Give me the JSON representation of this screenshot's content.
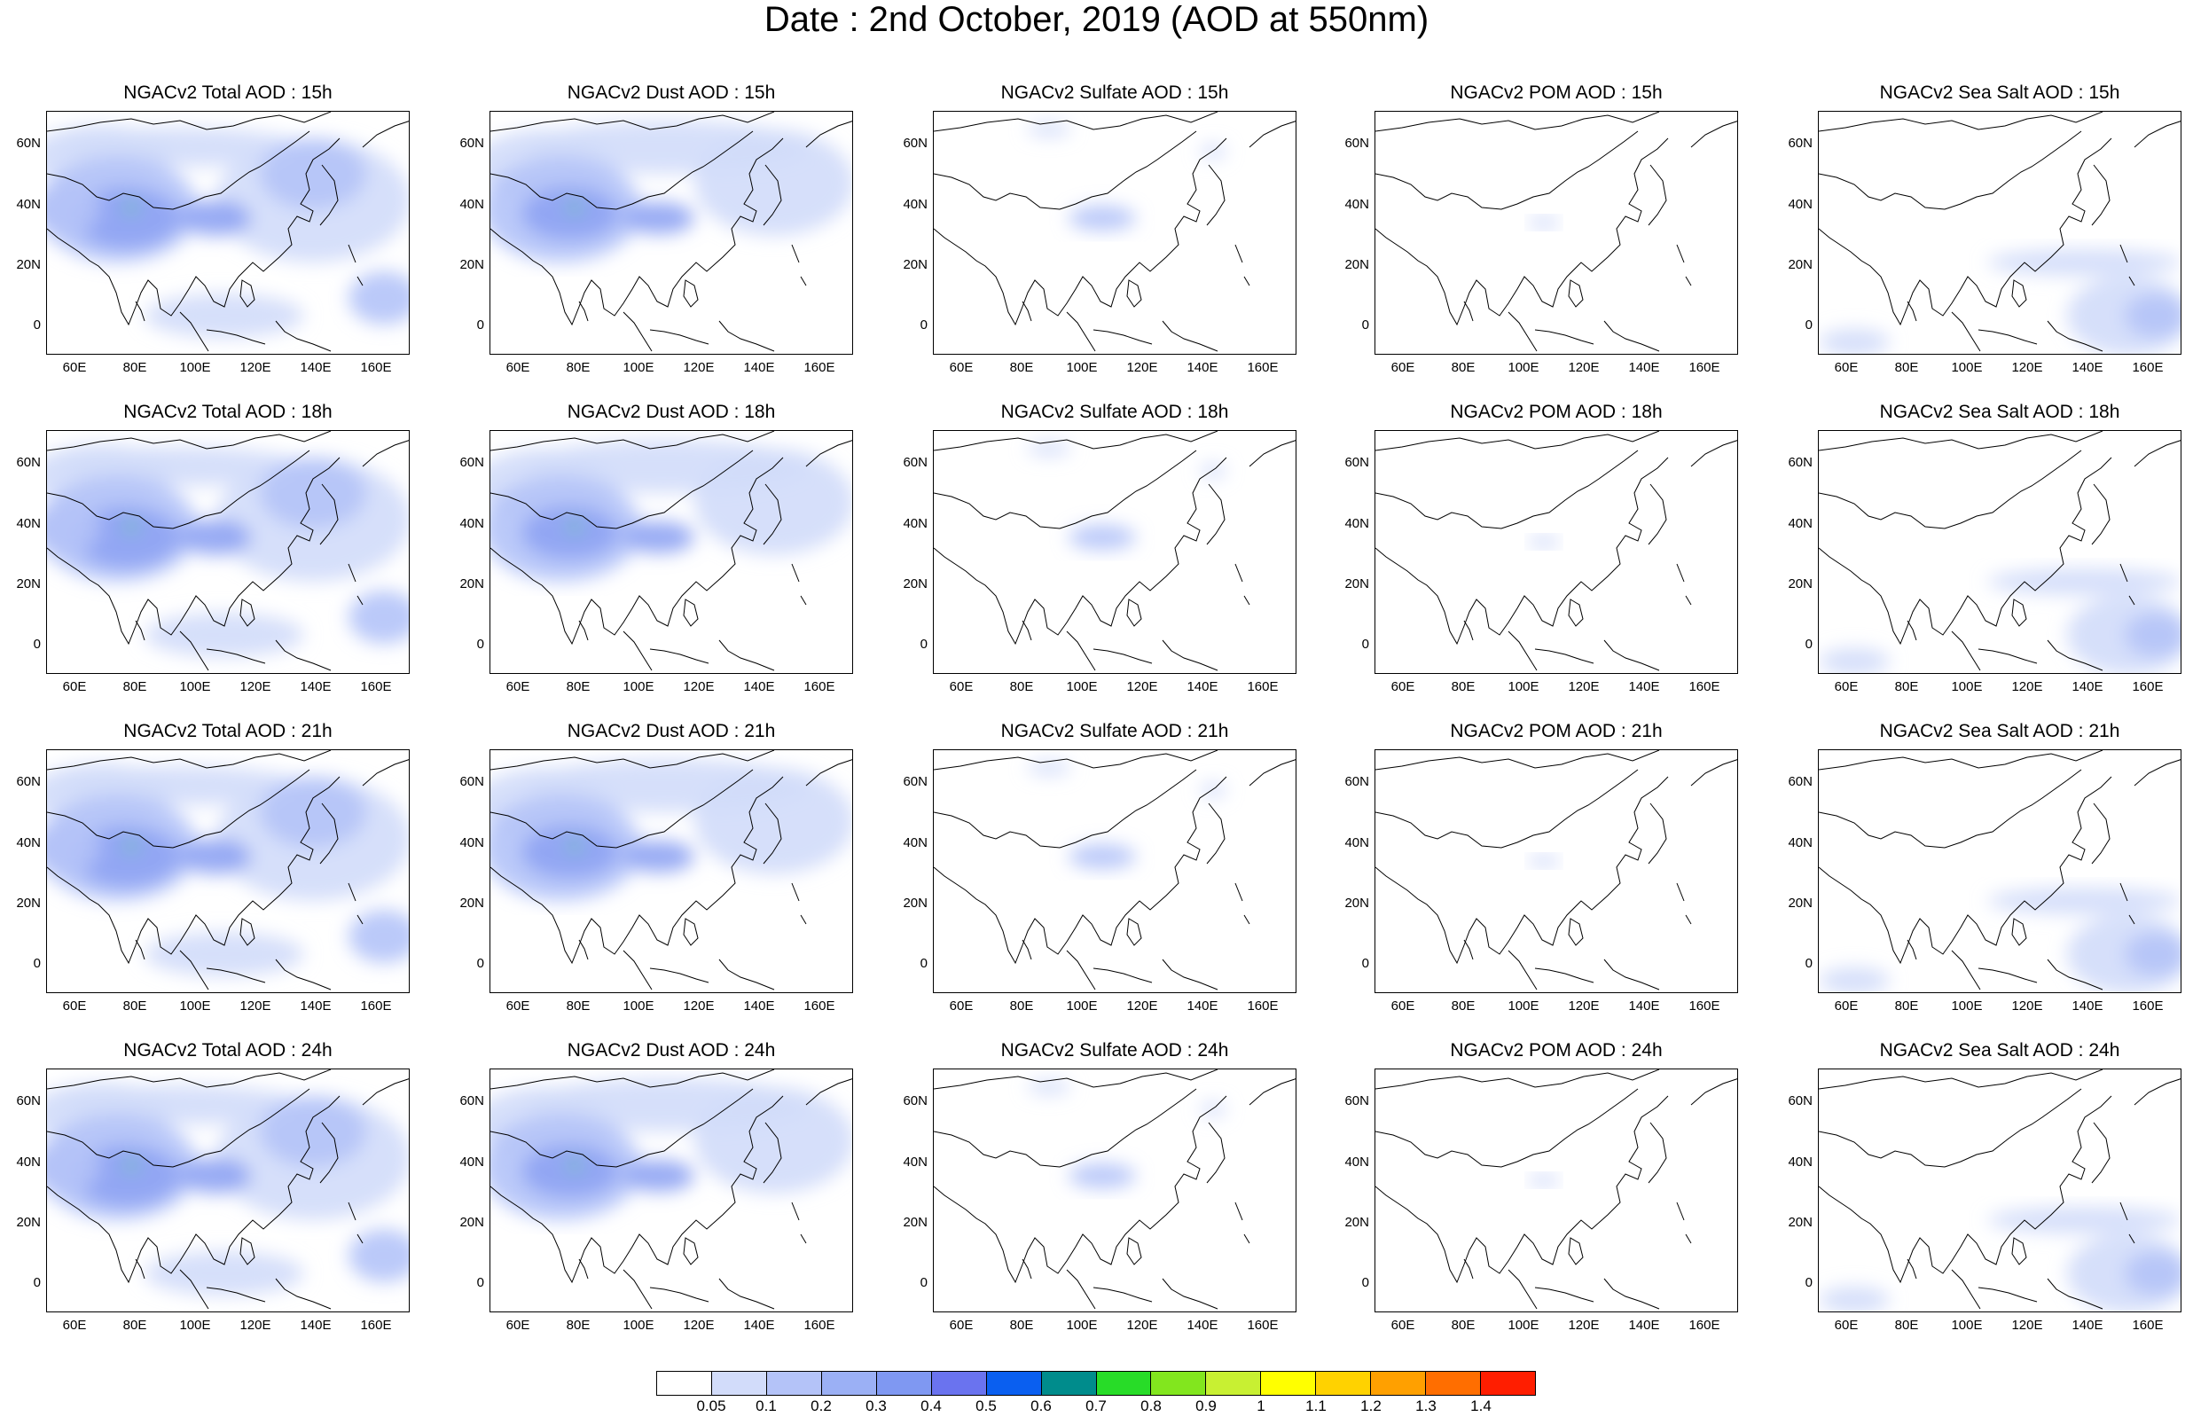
{
  "title": "Date : 2nd October, 2019 (AOD at 550nm)",
  "panels": [
    [
      {
        "title": "NGACv2 Total AOD : 15h",
        "product": "total"
      },
      {
        "title": "NGACv2 Dust AOD : 15h",
        "product": "dust"
      },
      {
        "title": "NGACv2 Sulfate AOD : 15h",
        "product": "sulfate"
      },
      {
        "title": "NGACv2 POM AOD : 15h",
        "product": "pom"
      },
      {
        "title": "NGACv2 Sea Salt AOD : 15h",
        "product": "seasalt"
      }
    ],
    [
      {
        "title": "NGACv2 Total AOD : 18h",
        "product": "total"
      },
      {
        "title": "NGACv2 Dust AOD : 18h",
        "product": "dust"
      },
      {
        "title": "NGACv2 Sulfate AOD : 18h",
        "product": "sulfate"
      },
      {
        "title": "NGACv2 POM AOD : 18h",
        "product": "pom"
      },
      {
        "title": "NGACv2 Sea Salt AOD : 18h",
        "product": "seasalt"
      }
    ],
    [
      {
        "title": "NGACv2 Total AOD : 21h",
        "product": "total"
      },
      {
        "title": "NGACv2 Dust AOD : 21h",
        "product": "dust"
      },
      {
        "title": "NGACv2 Sulfate AOD : 21h",
        "product": "sulfate"
      },
      {
        "title": "NGACv2 POM AOD : 21h",
        "product": "pom"
      },
      {
        "title": "NGACv2 Sea Salt AOD : 21h",
        "product": "seasalt"
      }
    ],
    [
      {
        "title": "NGACv2 Total AOD : 24h",
        "product": "total"
      },
      {
        "title": "NGACv2 Dust AOD : 24h",
        "product": "dust"
      },
      {
        "title": "NGACv2 Sulfate AOD : 24h",
        "product": "sulfate"
      },
      {
        "title": "NGACv2 POM AOD : 24h",
        "product": "pom"
      },
      {
        "title": "NGACv2 Sea Salt  AOD : 24h",
        "product": "seasalt"
      }
    ]
  ],
  "lat_ticks": [
    "60N",
    "40N",
    "20N",
    "0"
  ],
  "lon_ticks": [
    "60E",
    "80E",
    "100E",
    "120E",
    "140E",
    "160E"
  ],
  "colorbar": {
    "labels": [
      "0.05",
      "0.1",
      "0.2",
      "0.3",
      "0.4",
      "0.5",
      "0.6",
      "0.7",
      "0.8",
      "0.9",
      "1",
      "1.1",
      "1.2",
      "1.3",
      "1.4"
    ],
    "colors": [
      "#ffffff",
      "#d2dcfa",
      "#b4c3f8",
      "#9bb0f5",
      "#7f98f2",
      "#6a73ef",
      "#0a5ff0",
      "#008c8c",
      "#28dc28",
      "#82e61e",
      "#c8f032",
      "#ffff00",
      "#ffd200",
      "#ffa000",
      "#ff6e00",
      "#ff1e00"
    ]
  },
  "map_style": {
    "coastline_color": "#000000",
    "haze_colors": {
      "light": "#d2dcfa",
      "mid": "#b4c3f8",
      "dark": "#8ea3f3",
      "peak": "#28dc28"
    }
  }
}
